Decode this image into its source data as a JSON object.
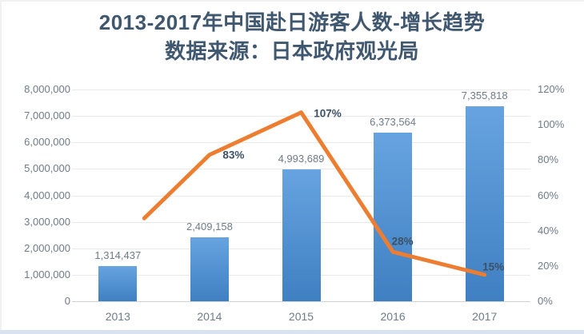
{
  "title": {
    "line1": "2013-2017年中国赴日游客人数-增长趋势",
    "line2": "数据来源：日本政府观光局"
  },
  "colors": {
    "title": "#3f576f",
    "axis_text": "#6f7b88",
    "pct_text": "#3d5166",
    "bar_top": "#67a3e0",
    "bar_bottom": "#3f80c2",
    "line": "#ED7D31",
    "gridline": "#e9e9e9",
    "axis_line": "#d2d2d2",
    "bottom_strip": "#d9e2f0"
  },
  "chart_data": {
    "type": "bar+line combo",
    "categories": [
      "2013",
      "2014",
      "2015",
      "2016",
      "2017"
    ],
    "series": [
      {
        "name": "visitors",
        "type": "bar",
        "axis": "left",
        "values": [
          1314437,
          2409158,
          4993689,
          6373564,
          7355818
        ],
        "labels": [
          "1,314,437",
          "2,409,158",
          "4,993,689",
          "6,373,564",
          "7,355,818"
        ]
      },
      {
        "name": "growth-rate",
        "type": "line",
        "axis": "right",
        "values": [
          47,
          83,
          107,
          28,
          15
        ],
        "labels": [
          "",
          "83%",
          "107%",
          "28%",
          "15%"
        ],
        "note": "2013 point unlabeled, ~47% estimated from plot"
      }
    ],
    "left_axis": {
      "min": 0,
      "max": 8000000,
      "step": 1000000,
      "ticks": [
        "8,000,000",
        "7,000,000",
        "6,000,000",
        "5,000,000",
        "4,000,000",
        "3,000,000",
        "2,000,000",
        "1,000,000",
        "0"
      ]
    },
    "right_axis": {
      "min_pct": 0,
      "max_pct": 120,
      "step_pct": 20,
      "ticks": [
        "120%",
        "100%",
        "80%",
        "60%",
        "40%",
        "20%",
        "0%"
      ]
    },
    "grid": "horizontal only",
    "legend": "none",
    "title": "2013-2017年中国赴日游客人数-增长趋势",
    "subtitle": "数据来源：日本政府观光局"
  }
}
